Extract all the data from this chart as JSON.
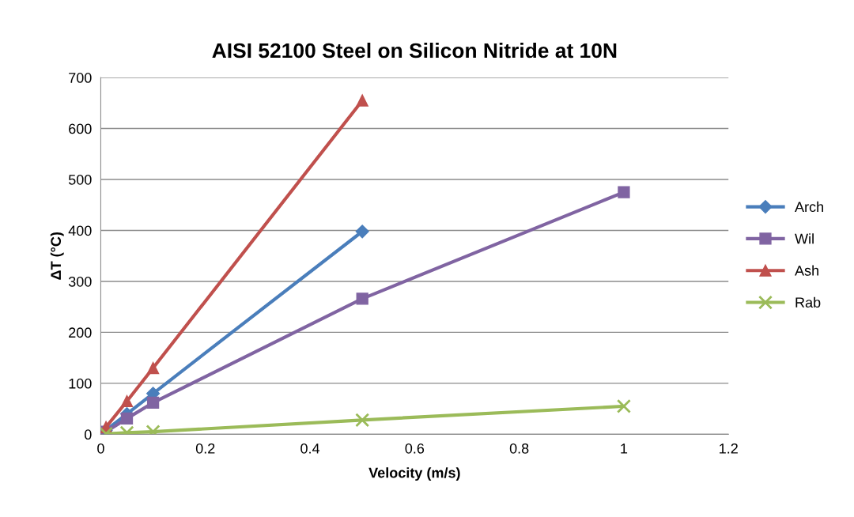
{
  "chart_data": {
    "type": "line",
    "title": "AISI 52100 Steel on Silicon Nitride at 10N",
    "xlabel": "Velocity (m/s)",
    "ylabel": "ΔT (°C)",
    "series": [
      {
        "name": "Arch",
        "color": "#4a7ebb",
        "marker": "diamond",
        "x": [
          0.01,
          0.05,
          0.1,
          0.5
        ],
        "values": [
          8,
          40,
          80,
          398
        ]
      },
      {
        "name": "Wil",
        "color": "#8064a2",
        "marker": "square",
        "x": [
          0.01,
          0.05,
          0.1,
          0.5,
          1
        ],
        "values": [
          5,
          31,
          62,
          266,
          475
        ]
      },
      {
        "name": "Ash",
        "color": "#c0504d",
        "marker": "triangle",
        "x": [
          0.01,
          0.05,
          0.1,
          0.5
        ],
        "values": [
          14,
          65,
          130,
          655
        ]
      },
      {
        "name": "Rab",
        "color": "#9bbb59",
        "marker": "cross",
        "x": [
          0.01,
          0.05,
          0.1,
          0.5,
          1
        ],
        "values": [
          1,
          3,
          5,
          28,
          55
        ]
      }
    ],
    "xlim": [
      0,
      1.2
    ],
    "xticks": [
      0,
      0.2,
      0.4,
      0.6,
      0.8,
      1,
      1.2
    ],
    "ylim": [
      0,
      700
    ],
    "yticks": [
      0,
      100,
      200,
      300,
      400,
      500,
      600,
      700
    ],
    "grid": "y",
    "legend": "right"
  }
}
